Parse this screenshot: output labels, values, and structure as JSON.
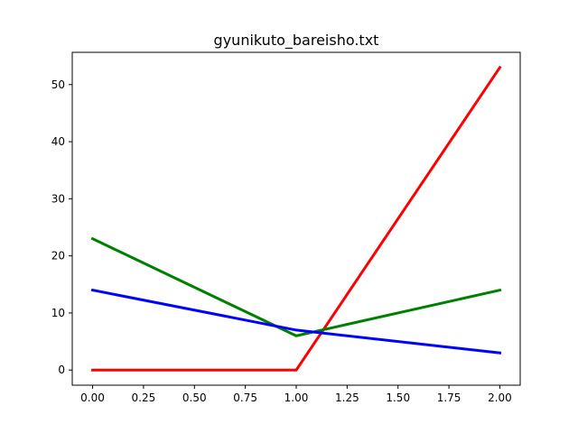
{
  "chart_data": {
    "type": "line",
    "title": "gyunikuto_bareisho.txt",
    "xlabel": "",
    "ylabel": "",
    "x": [
      0,
      1,
      2
    ],
    "xlim": [
      -0.1,
      2.1
    ],
    "ylim": [
      -2.65,
      55.65
    ],
    "xticks": [
      0.0,
      0.25,
      0.5,
      0.75,
      1.0,
      1.25,
      1.5,
      1.75,
      2.0
    ],
    "xtick_labels": [
      "0.00",
      "0.25",
      "0.50",
      "0.75",
      "1.00",
      "1.25",
      "1.50",
      "1.75",
      "2.00"
    ],
    "yticks": [
      0,
      10,
      20,
      30,
      40,
      50
    ],
    "ytick_labels": [
      "0",
      "10",
      "20",
      "30",
      "40",
      "50"
    ],
    "grid": false,
    "series": [
      {
        "color": "#ff0000",
        "values": [
          0,
          0,
          53
        ]
      },
      {
        "color": "#008000",
        "values": [
          23,
          6,
          14
        ]
      },
      {
        "color": "#0000ff",
        "values": [
          14,
          7,
          3
        ]
      }
    ]
  }
}
